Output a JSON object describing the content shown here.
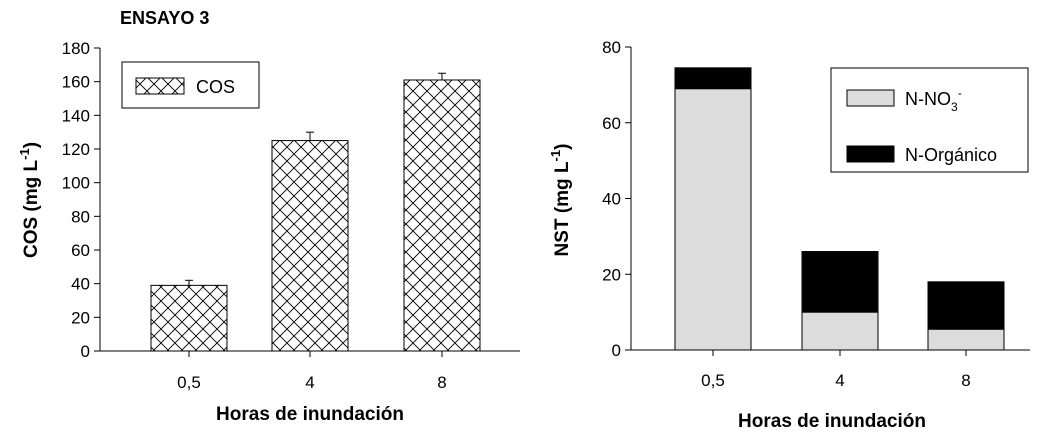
{
  "chart_data": [
    {
      "type": "bar",
      "title": "ENSAYO 3",
      "xlabel": "Horas de inundación",
      "ylabel": "COS (mg L-1)",
      "ylabel_main": "COS (mg L",
      "ylabel_sup": "-1",
      "ylabel_end": ")",
      "categories": [
        "0,5",
        "4",
        "8"
      ],
      "series": [
        {
          "name": "COS",
          "values": [
            39,
            125,
            161
          ],
          "errors": [
            3,
            5,
            4
          ],
          "pattern": "crosshatch"
        }
      ],
      "ylim": [
        0,
        180
      ],
      "yticks": [
        0,
        20,
        40,
        60,
        80,
        100,
        120,
        140,
        160,
        180
      ],
      "legend_position": "top-left",
      "grid": false
    },
    {
      "type": "stacked-bar",
      "title": "",
      "xlabel": "Horas de inundación",
      "ylabel": "NST (mg L-1)",
      "ylabel_main": "NST (mg L",
      "ylabel_sup": "-1",
      "ylabel_end": ")",
      "categories": [
        "0,5",
        "4",
        "8"
      ],
      "series": [
        {
          "name": "N-NO3-",
          "name_main": "N-NO",
          "name_sub": "3",
          "name_sup": "-",
          "values": [
            69,
            10,
            5.5
          ],
          "color": "#dcdcdc"
        },
        {
          "name": "N-Orgánico",
          "values": [
            5.5,
            16,
            12.5
          ],
          "color": "#000000"
        }
      ],
      "ylim": [
        0,
        80
      ],
      "yticks": [
        0,
        20,
        40,
        60,
        80
      ],
      "legend_position": "top-right",
      "grid": false
    }
  ]
}
